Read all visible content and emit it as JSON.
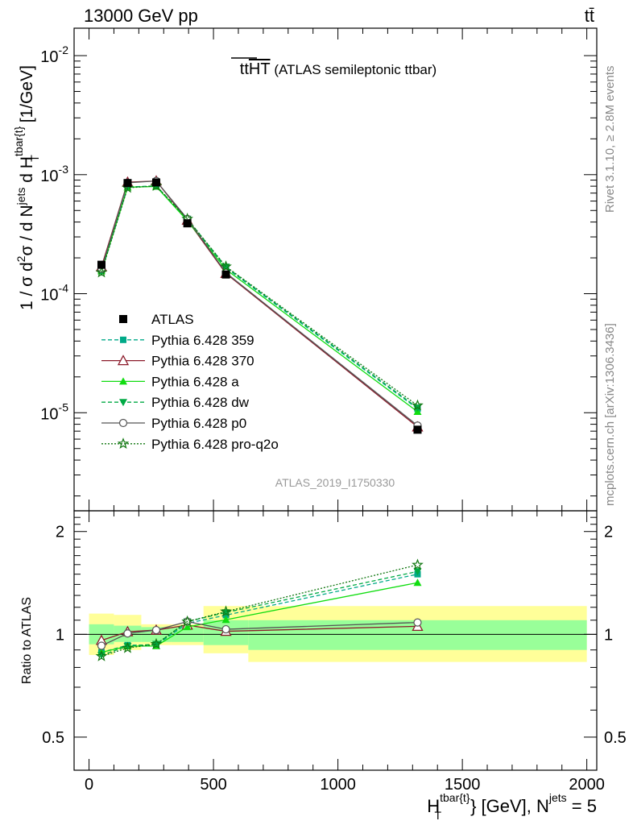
{
  "header": {
    "energy_label": "13000 GeV pp",
    "process_label": "tt̄"
  },
  "main": {
    "title": {
      "prefix": "tt",
      "overlined": "HT",
      "rest": " (ATLAS semileptonic ttbar)"
    },
    "ylabel": {
      "a": "1 / σ d",
      "a_sup": "2",
      "b": "σ / d N",
      "b_sup": "jets",
      "c": " d H",
      "c_sup": "tbar{t}",
      "c_sub": "T",
      "d": " [1/GeV]"
    },
    "yticks": [
      {
        "base": "10",
        "exp": "-2",
        "value": 0.01
      },
      {
        "base": "10",
        "exp": "-3",
        "value": 0.001
      },
      {
        "base": "10",
        "exp": "-4",
        "value": 0.0001
      },
      {
        "base": "10",
        "exp": "-5",
        "value": 1e-05
      }
    ],
    "analysis_id": "ATLAS_2019_I1750330"
  },
  "ratio": {
    "ylabel": "Ratio to ATLAS",
    "yticks": [
      {
        "label": "2",
        "value": 2
      },
      {
        "label": "1",
        "value": 1
      },
      {
        "label": "0.5",
        "value": 0.5
      }
    ]
  },
  "xaxis": {
    "ticks": [
      {
        "label": "0",
        "value": 0
      },
      {
        "label": "500",
        "value": 500
      },
      {
        "label": "1000",
        "value": 1000
      },
      {
        "label": "1500",
        "value": 1500
      },
      {
        "label": "2000",
        "value": 2000
      }
    ],
    "label_a": "H",
    "label_sup": "tbar{t}",
    "label_sub": "T",
    "label_b": "} [GeV], N",
    "label_sup2": "jets",
    "label_c": " = 5"
  },
  "side": {
    "rivet": "Rivet 3.1.10, ≥ 2.8M events",
    "mcplots": "mcplots.cern.ch [arXiv:1306.3436]"
  },
  "colors": {
    "band_inner": "#99ff99",
    "band_outer": "#ffff99",
    "data": "#000000"
  },
  "chart_data": {
    "type": "line",
    "xlim": [
      -60,
      2040
    ],
    "ylim_main": [
      1.5e-06,
      0.017
    ],
    "ylim_ratio": [
      0.4,
      2.3
    ],
    "y_scale": "log",
    "bins": [
      [
        0,
        100
      ],
      [
        100,
        210
      ],
      [
        210,
        330
      ],
      [
        330,
        460
      ],
      [
        460,
        640
      ],
      [
        640,
        2000
      ]
    ],
    "x": [
      50,
      155,
      270,
      395,
      550,
      1320
    ],
    "data": {
      "name": "ATLAS",
      "values": [
        0.000175,
        0.00085,
        0.00086,
        0.00039,
        0.000145,
        7.2e-06
      ],
      "band_inner": [
        [
          0.935,
          1.07
        ],
        [
          0.95,
          1.06
        ],
        [
          0.95,
          1.05
        ],
        [
          0.95,
          1.05
        ],
        [
          0.93,
          1.1
        ],
        [
          0.9,
          1.1
        ]
      ],
      "band_outer": [
        [
          0.87,
          1.15
        ],
        [
          0.9,
          1.14
        ],
        [
          0.93,
          1.07
        ],
        [
          0.93,
          1.07
        ],
        [
          0.88,
          1.21
        ],
        [
          0.83,
          1.21
        ]
      ]
    },
    "series": [
      {
        "name": "Pythia 6.428 359",
        "color": "#00aa88",
        "dash": "5,3",
        "marker": "square-filled",
        "values": [
          0.000155,
          0.00079,
          0.0008,
          0.00042,
          0.000165,
          1.08e-05
        ]
      },
      {
        "name": "Pythia 6.428 370",
        "color": "#8b1a2a",
        "dash": "",
        "marker": "triangle-open",
        "values": [
          0.000168,
          0.000865,
          0.000885,
          0.000415,
          0.000148,
          7.6e-06
        ]
      },
      {
        "name": "Pythia 6.428 a",
        "color": "#11dd11",
        "dash": "",
        "marker": "triangle-filled",
        "values": [
          0.000155,
          0.000785,
          0.000795,
          0.00041,
          0.00016,
          1.02e-05
        ]
      },
      {
        "name": "Pythia 6.428 dw",
        "color": "#00aa44",
        "dash": "5,3",
        "marker": "triangle-down-filled",
        "values": [
          0.000152,
          0.000785,
          0.000805,
          0.000425,
          0.000168,
          1.1e-05
        ]
      },
      {
        "name": "Pythia 6.428 p0",
        "color": "#555555",
        "dash": "",
        "marker": "circle-open",
        "values": [
          0.000162,
          0.000855,
          0.000885,
          0.000425,
          0.00015,
          7.8e-06
        ]
      },
      {
        "name": "Pythia 6.428 pro-q2o",
        "color": "#117711",
        "dash": "2,2",
        "marker": "star-open",
        "values": [
          0.000151,
          0.000775,
          0.000805,
          0.000425,
          0.000169,
          1.15e-05
        ]
      }
    ]
  }
}
